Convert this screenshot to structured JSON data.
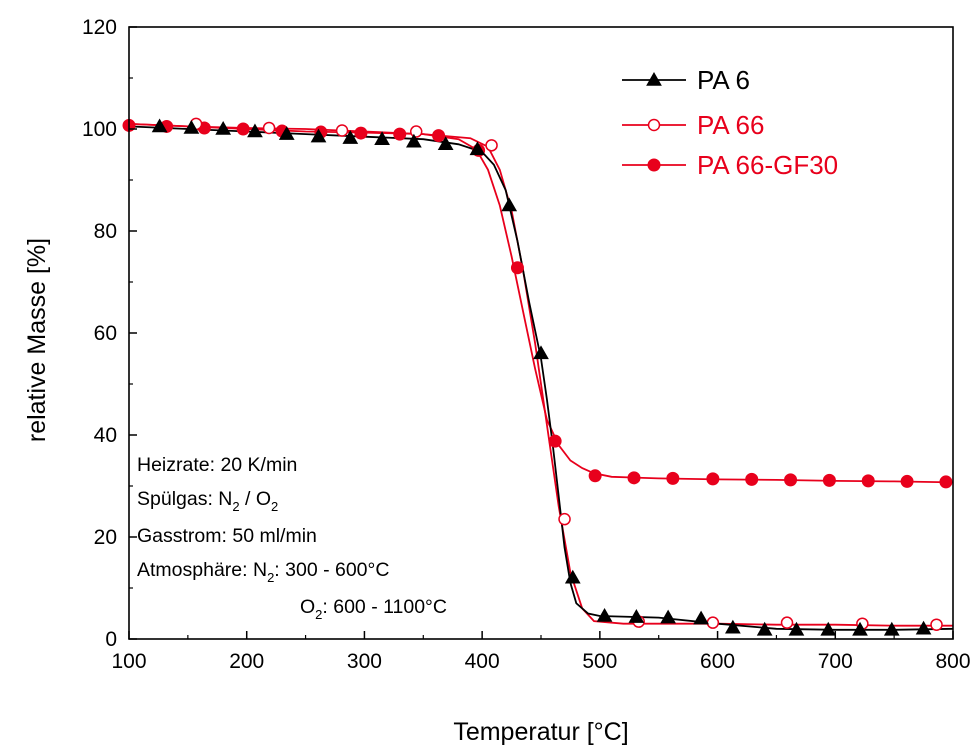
{
  "chart_data": {
    "type": "line",
    "title": "",
    "xlabel": "Temperatur  [°C]",
    "ylabel": "relative Masse  [%]",
    "xlim": [
      100,
      800
    ],
    "ylim": [
      0,
      120
    ],
    "xticks": [
      100,
      200,
      300,
      400,
      500,
      600,
      700,
      800
    ],
    "yticks": [
      0,
      20,
      40,
      60,
      80,
      100,
      120
    ],
    "grid": false,
    "legend_position": "top-right",
    "series": [
      {
        "name": "PA 6",
        "color": "#000000",
        "marker": "filled-triangle",
        "line_x": [
          100,
          150,
          200,
          250,
          300,
          350,
          380,
          400,
          410,
          420,
          430,
          440,
          450,
          455,
          460,
          465,
          470,
          475,
          480,
          490,
          500,
          550,
          600,
          650,
          700,
          750,
          800
        ],
        "line_y": [
          100.5,
          100,
          99.5,
          99,
          98.5,
          98,
          97,
          95.5,
          93,
          88,
          78,
          66,
          55,
          47,
          38,
          28,
          18,
          11,
          7,
          5,
          4.5,
          4.2,
          3,
          2,
          1.8,
          1.8,
          2
        ],
        "marker_x": [
          126,
          153,
          180,
          207,
          234,
          261,
          288,
          315,
          342,
          369,
          396,
          423,
          450,
          477,
          504,
          531,
          558,
          586,
          613,
          640,
          667,
          694,
          721,
          748,
          775
        ],
        "marker_y": [
          100.5,
          100.2,
          100,
          99.5,
          99,
          98.5,
          98.2,
          98,
          97.5,
          97,
          96,
          85,
          56,
          12,
          4.5,
          4.3,
          4.2,
          4,
          2.2,
          1.8,
          1.8,
          1.8,
          1.8,
          1.8,
          2
        ]
      },
      {
        "name": "PA 66",
        "color": "#e8001c",
        "marker": "open-circle",
        "line_x": [
          100,
          150,
          200,
          250,
          300,
          350,
          390,
          405,
          415,
          425,
          435,
          445,
          455,
          465,
          475,
          485,
          495,
          520,
          560,
          600,
          650,
          700,
          750,
          800
        ],
        "line_y": [
          101,
          100.5,
          100.2,
          100,
          99.5,
          99,
          98.2,
          96.5,
          92,
          84,
          72,
          58,
          42,
          26,
          13,
          6,
          3.5,
          3,
          3,
          3,
          2.8,
          2.8,
          2.6,
          2.6
        ],
        "marker_x": [
          157,
          219,
          281,
          344,
          408,
          470,
          533,
          596,
          659,
          723,
          786
        ],
        "marker_y": [
          101,
          100.2,
          99.7,
          99.5,
          96.8,
          23.5,
          3.4,
          3.2,
          3.2,
          3,
          2.8
        ]
      },
      {
        "name": "PA 66-GF30",
        "color": "#e8001c",
        "marker": "filled-circle",
        "line_x": [
          100,
          150,
          200,
          250,
          300,
          350,
          380,
          395,
          405,
          415,
          425,
          435,
          445,
          455,
          465,
          475,
          485,
          495,
          510,
          550,
          600,
          650,
          700,
          750,
          800
        ],
        "line_y": [
          101,
          100.5,
          100,
          99.5,
          99.3,
          99,
          98,
          96,
          92,
          85,
          75,
          64,
          53,
          43,
          38,
          35,
          33.5,
          32.5,
          31.8,
          31.5,
          31.3,
          31.2,
          31,
          30.9,
          30.7
        ],
        "marker_x": [
          100,
          132,
          164,
          197,
          230,
          263,
          297,
          330,
          363,
          397,
          430,
          462,
          496,
          529,
          562,
          596,
          629,
          662,
          695,
          728,
          761,
          794
        ],
        "marker_y": [
          100.7,
          100.5,
          100.2,
          100,
          99.6,
          99.4,
          99.2,
          99,
          98.7,
          95.8,
          72.8,
          38.8,
          32,
          31.6,
          31.5,
          31.4,
          31.3,
          31.2,
          31.1,
          31,
          30.9,
          30.8
        ]
      }
    ],
    "annotations": {
      "heizrate": "Heizrate: 20 K/min",
      "spuelgas_prefix": "Spülgas: N",
      "spuelgas_sub1": "2",
      "spuelgas_mid": " / O",
      "spuelgas_sub2": "2",
      "gasstrom": "Gasstrom: 50 ml/min",
      "atmo_prefix": "Atmosphäre: N",
      "atmo_sub1": "2",
      "atmo_rest1": ":  300 -   600°C",
      "atmo2_prefix": "O",
      "atmo2_sub": "2",
      "atmo2_rest": ":  600 - 1100°C"
    }
  }
}
